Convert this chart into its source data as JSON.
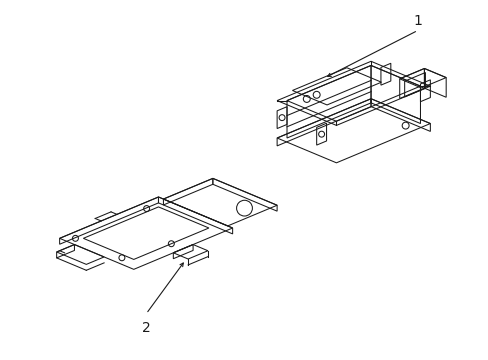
{
  "background_color": "#ffffff",
  "line_color": "#1a1a1a",
  "lw": 0.75,
  "label_1": "1",
  "label_2": "2",
  "figsize": [
    4.89,
    3.6
  ],
  "dpi": 100
}
